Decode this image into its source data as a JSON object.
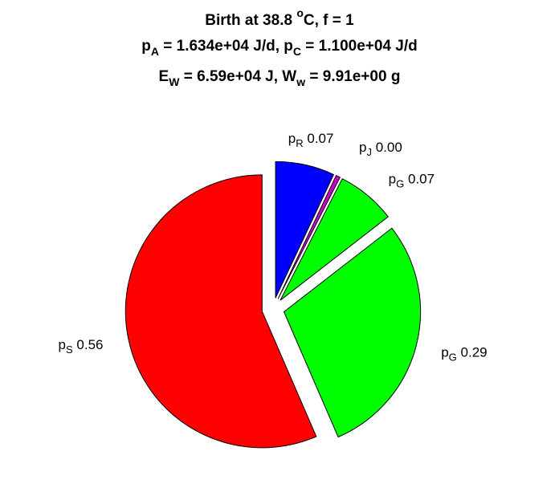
{
  "chart_data": {
    "type": "pie",
    "title_lines": [
      {
        "parts": [
          {
            "t": "Birth at 38.8 "
          },
          {
            "t": "o",
            "s": "sup"
          },
          {
            "t": "C, f = 1"
          }
        ]
      },
      {
        "parts": [
          {
            "t": "p"
          },
          {
            "t": "A",
            "s": "sub"
          },
          {
            "t": " = 1.634e+04 J/d, p"
          },
          {
            "t": "C",
            "s": "sub"
          },
          {
            "t": " = 1.100e+04 J/d"
          }
        ]
      },
      {
        "parts": [
          {
            "t": "E"
          },
          {
            "t": "W",
            "s": "sub"
          },
          {
            "t": " = 6.59e+04 J, W"
          },
          {
            "t": "w",
            "s": "sub"
          },
          {
            "t": " = 9.91e+00 g"
          }
        ]
      }
    ],
    "slices": [
      {
        "symbol": "p",
        "sub": "R",
        "value_label": "0.07",
        "value": 0.07,
        "color": "#0000ff",
        "exploded": true
      },
      {
        "symbol": "p",
        "sub": "J",
        "value_label": "0.00",
        "value": 0.005,
        "color": "#cc00cc",
        "exploded": true
      },
      {
        "symbol": "p",
        "sub": "G",
        "value_label": "0.07",
        "value": 0.07,
        "color": "#00ff00",
        "exploded": true
      },
      {
        "symbol": "p",
        "sub": "G",
        "value_label": "0.29",
        "value": 0.29,
        "color": "#00ff00",
        "exploded": true
      },
      {
        "symbol": "p",
        "sub": "S",
        "value_label": "0.56",
        "value": 0.565,
        "color": "#ff0000",
        "exploded": true
      }
    ],
    "start_direction": "12 o'clock",
    "direction": "clockwise"
  }
}
